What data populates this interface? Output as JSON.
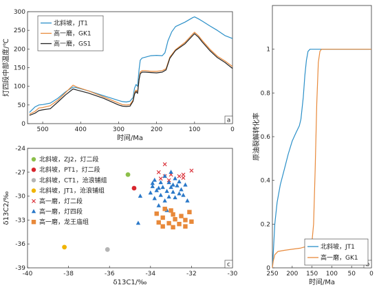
{
  "chart_data": [
    {
      "type": "line",
      "panel_label": "a",
      "xlabel": "时间/Ma",
      "ylabel": "灯四段中部温度/℃",
      "xlim": [
        540,
        0
      ],
      "ylim": [
        0,
        300
      ],
      "xticks": [
        500,
        400,
        300,
        200,
        100,
        0
      ],
      "yticks": [
        0,
        50,
        100,
        150,
        200,
        250,
        300
      ],
      "legend_position": "top-left",
      "series": [
        {
          "name": "北斜坡，JT1",
          "color": "#2a8fc8",
          "points": [
            [
              535,
              30
            ],
            [
              520,
              45
            ],
            [
              510,
              50
            ],
            [
              500,
              51
            ],
            [
              480,
              55
            ],
            [
              460,
              68
            ],
            [
              440,
              85
            ],
            [
              420,
              98
            ],
            [
              410,
              96
            ],
            [
              380,
              88
            ],
            [
              340,
              75
            ],
            [
              300,
              62
            ],
            [
              290,
              59
            ],
            [
              280,
              58
            ],
            [
              270,
              60
            ],
            [
              262,
              70
            ],
            [
              258,
              95
            ],
            [
              254,
              105
            ],
            [
              250,
              100
            ],
            [
              246,
              145
            ],
            [
              243,
              170
            ],
            [
              238,
              176
            ],
            [
              230,
              178
            ],
            [
              215,
              182
            ],
            [
              200,
              183
            ],
            [
              185,
              182
            ],
            [
              178,
              190
            ],
            [
              170,
              222
            ],
            [
              160,
              246
            ],
            [
              150,
              260
            ],
            [
              125,
              272
            ],
            [
              105,
              284
            ],
            [
              100,
              286
            ],
            [
              90,
              281
            ],
            [
              80,
              275
            ],
            [
              60,
              262
            ],
            [
              40,
              250
            ],
            [
              20,
              236
            ],
            [
              0,
              228
            ]
          ]
        },
        {
          "name": "高一磨，GK1",
          "color": "#e8893a",
          "points": [
            [
              535,
              25
            ],
            [
              520,
              33
            ],
            [
              510,
              42
            ],
            [
              500,
              43
            ],
            [
              480,
              48
            ],
            [
              460,
              63
            ],
            [
              440,
              83
            ],
            [
              420,
              103
            ],
            [
              410,
              98
            ],
            [
              380,
              88
            ],
            [
              340,
              72
            ],
            [
              300,
              55
            ],
            [
              290,
              51
            ],
            [
              280,
              50
            ],
            [
              270,
              51
            ],
            [
              262,
              63
            ],
            [
              258,
              83
            ],
            [
              254,
              90
            ],
            [
              250,
              85
            ],
            [
              246,
              120
            ],
            [
              243,
              138
            ],
            [
              238,
              142
            ],
            [
              230,
              142
            ],
            [
              215,
              140
            ],
            [
              200,
              140
            ],
            [
              185,
              142
            ],
            [
              175,
              147
            ],
            [
              165,
              178
            ],
            [
              150,
              198
            ],
            [
              125,
              218
            ],
            [
              105,
              240
            ],
            [
              100,
              245
            ],
            [
              90,
              236
            ],
            [
              80,
              223
            ],
            [
              60,
              200
            ],
            [
              40,
              181
            ],
            [
              20,
              168
            ],
            [
              0,
              153
            ]
          ]
        },
        {
          "name": "高一磨，GS1",
          "color": "#222222",
          "points": [
            [
              535,
              22
            ],
            [
              520,
              28
            ],
            [
              510,
              35
            ],
            [
              500,
              37
            ],
            [
              480,
              40
            ],
            [
              460,
              58
            ],
            [
              440,
              77
            ],
            [
              420,
              93
            ],
            [
              410,
              90
            ],
            [
              380,
              82
            ],
            [
              340,
              68
            ],
            [
              300,
              50
            ],
            [
              290,
              47
            ],
            [
              280,
              46
            ],
            [
              270,
              47
            ],
            [
              262,
              60
            ],
            [
              258,
              79
            ],
            [
              254,
              86
            ],
            [
              250,
              81
            ],
            [
              246,
              118
            ],
            [
              243,
              134
            ],
            [
              238,
              138
            ],
            [
              230,
              138
            ],
            [
              215,
              137
            ],
            [
              200,
              136
            ],
            [
              185,
              138
            ],
            [
              175,
              144
            ],
            [
              165,
              175
            ],
            [
              150,
              196
            ],
            [
              125,
              214
            ],
            [
              105,
              236
            ],
            [
              100,
              241
            ],
            [
              90,
              232
            ],
            [
              80,
              219
            ],
            [
              60,
              196
            ],
            [
              40,
              177
            ],
            [
              20,
              164
            ],
            [
              0,
              148
            ]
          ]
        }
      ]
    },
    {
      "type": "line",
      "panel_label": "b",
      "xlabel": "时间/Ma",
      "ylabel": "原油裂解转化率",
      "xlim": [
        250,
        0
      ],
      "ylim": [
        0,
        1.2
      ],
      "xticks": [
        250,
        200,
        150,
        100,
        50,
        0
      ],
      "yticks": [
        0,
        0.2,
        0.4,
        0.6,
        0.8,
        1.0
      ],
      "legend_position": "bottom-right",
      "series": [
        {
          "name": "北斜坡，JT1",
          "color": "#2a8fc8",
          "points": [
            [
              250,
              0
            ],
            [
              248,
              0.06
            ],
            [
              244,
              0.2
            ],
            [
              238,
              0.3
            ],
            [
              230,
              0.38
            ],
            [
              220,
              0.45
            ],
            [
              210,
              0.52
            ],
            [
              200,
              0.58
            ],
            [
              190,
              0.62
            ],
            [
              182,
              0.65
            ],
            [
              178,
              0.68
            ],
            [
              172,
              0.78
            ],
            [
              168,
              0.88
            ],
            [
              164,
              0.95
            ],
            [
              160,
              0.99
            ],
            [
              155,
              1.0
            ],
            [
              140,
              1.0
            ],
            [
              100,
              1.0
            ],
            [
              0,
              1.0
            ]
          ]
        },
        {
          "name": "高一磨，GK1",
          "color": "#e8893a",
          "points": [
            [
              250,
              0
            ],
            [
              248,
              0.03
            ],
            [
              244,
              0.06
            ],
            [
              236,
              0.075
            ],
            [
              220,
              0.08
            ],
            [
              200,
              0.085
            ],
            [
              180,
              0.09
            ],
            [
              160,
              0.1
            ],
            [
              150,
              0.12
            ],
            [
              146,
              0.2
            ],
            [
              142,
              0.45
            ],
            [
              138,
              0.75
            ],
            [
              134,
              0.94
            ],
            [
              130,
              0.99
            ],
            [
              126,
              1.0
            ],
            [
              110,
              1.0
            ],
            [
              0,
              1.0
            ]
          ]
        }
      ]
    },
    {
      "type": "scatter",
      "panel_label": "c",
      "xlabel": "δ13C1/‰",
      "ylabel": "δ13C2/‰",
      "xlim": [
        -40,
        -30
      ],
      "ylim": [
        -39,
        -24
      ],
      "xticks": [
        -40,
        -38,
        -36,
        -34,
        -32,
        -30
      ],
      "yticks": [
        -39,
        -36,
        -33,
        -30,
        -27,
        -24
      ],
      "legend_position": "top-left",
      "series": [
        {
          "name": "北斜坡，ZJ2，灯二段",
          "marker": "circle",
          "color": "#8cbf4a",
          "points": [
            [
              -35.1,
              -27.3
            ]
          ]
        },
        {
          "name": "北斜坡，PT1，灯二段",
          "marker": "circle",
          "color": "#d8262e",
          "points": [
            [
              -34.8,
              -29.0
            ]
          ]
        },
        {
          "name": "北斜坡，CT1，沧浪铺组",
          "marker": "circle",
          "color": "#b4b4b4",
          "points": [
            [
              -36.1,
              -36.7
            ]
          ]
        },
        {
          "name": "北斜坡，JT1，沧浪铺组",
          "marker": "circle",
          "color": "#f0b400",
          "points": [
            [
              -38.2,
              -36.4
            ]
          ]
        },
        {
          "name": "高一磨，灯二段",
          "marker": "cross",
          "color": "#d8262e",
          "points": [
            [
              -33.3,
              -26.0
            ],
            [
              -32.0,
              -26.8
            ],
            [
              -33.6,
              -27.0
            ],
            [
              -33.0,
              -27.3
            ],
            [
              -33.5,
              -27.8
            ],
            [
              -32.6,
              -27.5
            ],
            [
              -32.4,
              -27.3
            ],
            [
              -33.1,
              -28.0
            ],
            [
              -32.4,
              -27.7
            ],
            [
              -33.3,
              -27.5
            ]
          ]
        },
        {
          "name": "高一磨，灯四段",
          "marker": "triangle",
          "color": "#2a78c8",
          "points": [
            [
              -33.0,
              -27.0
            ],
            [
              -33.3,
              -27.5
            ],
            [
              -33.8,
              -28.0
            ],
            [
              -32.8,
              -27.8
            ],
            [
              -33.5,
              -28.3
            ],
            [
              -33.1,
              -28.3
            ],
            [
              -32.6,
              -28.2
            ],
            [
              -33.9,
              -28.8
            ],
            [
              -33.4,
              -28.9
            ],
            [
              -33.0,
              -28.9
            ],
            [
              -32.7,
              -28.7
            ],
            [
              -32.3,
              -28.6
            ],
            [
              -33.7,
              -29.3
            ],
            [
              -33.2,
              -29.4
            ],
            [
              -32.9,
              -29.5
            ],
            [
              -32.5,
              -29.2
            ],
            [
              -34.0,
              -29.6
            ],
            [
              -33.5,
              -29.9
            ],
            [
              -33.1,
              -30.1
            ],
            [
              -32.8,
              -30.2
            ],
            [
              -32.4,
              -29.9
            ],
            [
              -33.8,
              -30.3
            ],
            [
              -33.3,
              -30.6
            ],
            [
              -32.2,
              -30.6
            ],
            [
              -34.5,
              -30.0
            ],
            [
              -33.6,
              -31.2
            ],
            [
              -33.2,
              -31.8
            ],
            [
              -34.6,
              -33.4
            ],
            [
              -33.9,
              -28.4
            ],
            [
              -32.9,
              -28.6
            ],
            [
              -33.6,
              -29.0
            ],
            [
              -32.6,
              -29.7
            ]
          ]
        },
        {
          "name": "高一磨，龙王庙组",
          "marker": "square",
          "color": "#e8893a",
          "points": [
            [
              -33.3,
              -31.6
            ],
            [
              -33.0,
              -31.8
            ],
            [
              -33.7,
              -32.2
            ],
            [
              -32.9,
              -32.3
            ],
            [
              -32.5,
              -32.5
            ],
            [
              -32.1,
              -32.0
            ],
            [
              -33.4,
              -32.7
            ],
            [
              -32.8,
              -32.9
            ],
            [
              -32.3,
              -33.0
            ],
            [
              -33.6,
              -33.3
            ],
            [
              -33.1,
              -33.4
            ],
            [
              -32.6,
              -33.5
            ],
            [
              -32.0,
              -33.2
            ],
            [
              -32.9,
              -33.9
            ],
            [
              -33.4,
              -33.8
            ],
            [
              -32.3,
              -33.8
            ]
          ]
        }
      ]
    }
  ]
}
